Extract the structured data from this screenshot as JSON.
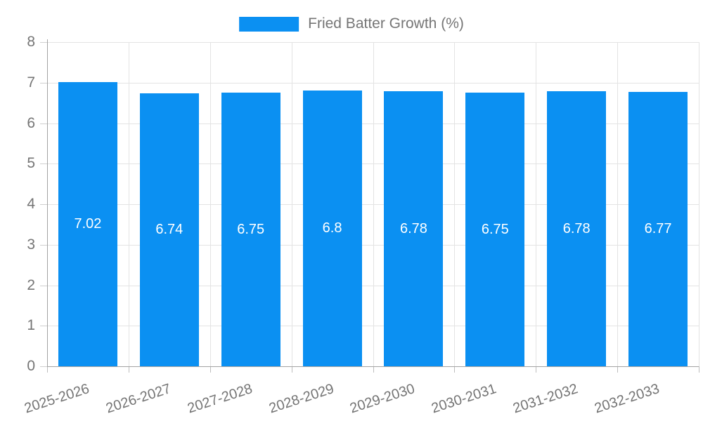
{
  "chart_data": {
    "type": "bar",
    "title": "",
    "legend": {
      "label": "Fried Batter Growth (%)",
      "position": "top"
    },
    "categories": [
      "2025-2026",
      "2026-2027",
      "2027-2028",
      "2028-2029",
      "2029-2030",
      "2030-2031",
      "2031-2032",
      "2032-2033"
    ],
    "values": [
      7.02,
      6.74,
      6.75,
      6.8,
      6.78,
      6.75,
      6.78,
      6.77
    ],
    "value_labels": [
      "7.02",
      "6.74",
      "6.75",
      "6.8",
      "6.78",
      "6.75",
      "6.78",
      "6.77"
    ],
    "ylabel": "",
    "xlabel": "",
    "ylim": [
      0,
      8
    ],
    "yticks": [
      0,
      1,
      2,
      3,
      4,
      5,
      6,
      7,
      8
    ],
    "grid": true,
    "colors": {
      "bar": "#0b90f2",
      "value_label": "#ffffff",
      "gridline": "#e3e3e3",
      "axis_line": "#a3a3a3",
      "tick_label": "#757575"
    }
  }
}
